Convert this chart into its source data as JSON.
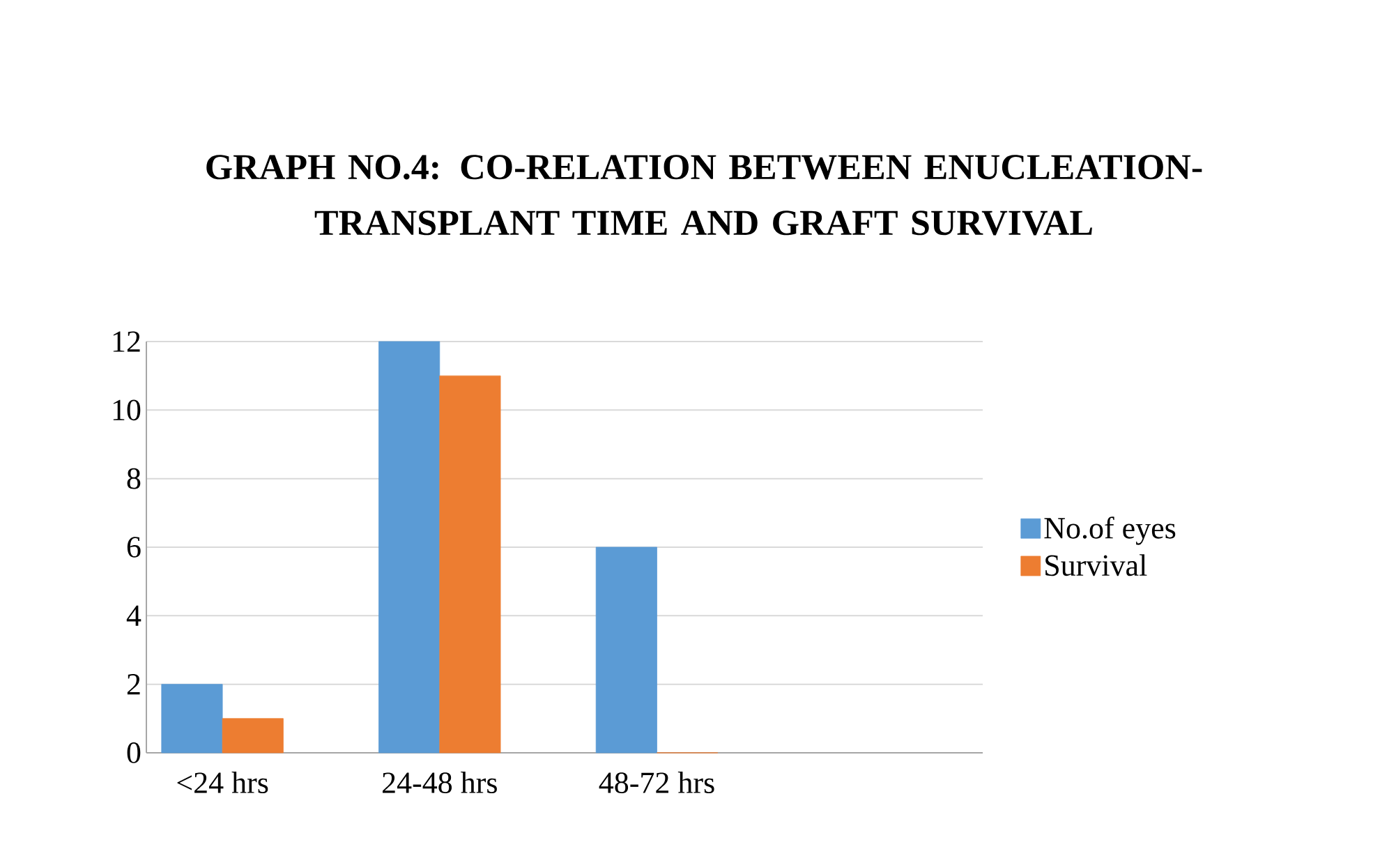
{
  "chart_data": {
    "type": "bar",
    "title": "GRAPH NO.4: CO-RELATION BETWEEN ENUCLEATION- TRANSPLANT TIME AND GRAFT SURVIVAL",
    "categories": [
      "<24 hrs",
      "24-48 hrs",
      "48-72 hrs"
    ],
    "series": [
      {
        "name": "No.of eyes",
        "color": "#5b9bd5",
        "values": [
          2,
          12,
          6
        ]
      },
      {
        "name": "Survival",
        "color": "#ed7d31",
        "values": [
          1,
          11,
          0
        ]
      }
    ],
    "ylim": [
      0,
      12
    ],
    "yticks": [
      0,
      2,
      4,
      6,
      8,
      10,
      12
    ],
    "grid": "y",
    "legend": "right"
  }
}
